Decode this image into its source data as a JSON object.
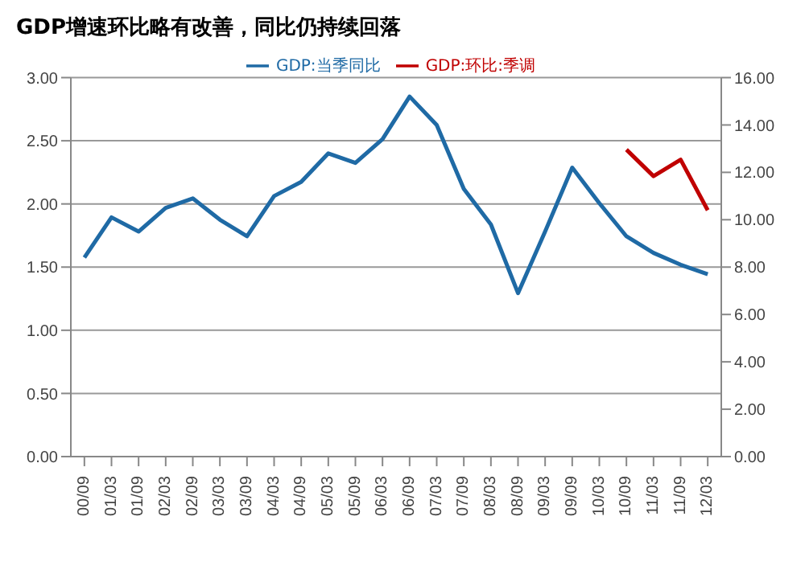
{
  "chart_data": {
    "type": "line",
    "title": "GDP增速环比略有改善，同比仍持续回落",
    "categories": [
      "00/09",
      "01/03",
      "01/09",
      "02/03",
      "02/09",
      "03/03",
      "03/09",
      "04/03",
      "04/09",
      "05/03",
      "05/09",
      "06/03",
      "06/09",
      "07/03",
      "07/09",
      "08/03",
      "08/09",
      "09/03",
      "09/09",
      "10/03",
      "10/09",
      "11/03",
      "11/09",
      "12/03"
    ],
    "series": [
      {
        "name": "GDP:环比:季调",
        "color": "#c00000",
        "values": [
          null,
          null,
          null,
          null,
          null,
          null,
          null,
          null,
          null,
          null,
          null,
          null,
          null,
          null,
          null,
          null,
          null,
          null,
          null,
          null,
          2.43,
          2.22,
          2.35,
          1.95
        ]
      },
      {
        "name": "GDP:当季同比",
        "color": "#1f6aa5",
        "axis": "y2",
        "values": [
          8.4,
          10.1,
          9.5,
          10.5,
          10.9,
          10.0,
          9.3,
          11.0,
          11.6,
          12.8,
          12.4,
          13.4,
          15.2,
          14.0,
          11.3,
          9.8,
          6.9,
          9.5,
          12.2,
          10.7,
          9.3,
          8.6,
          8.1,
          7.7
        ]
      }
    ],
    "ylim": [
      0,
      3
    ],
    "yticks": [
      {
        "value": 0,
        "label": "0.00"
      },
      {
        "value": 0.5,
        "label": "0.50"
      },
      {
        "value": 1,
        "label": "1.00"
      },
      {
        "value": 1.5,
        "label": "1.50"
      },
      {
        "value": 2,
        "label": "2.00"
      },
      {
        "value": 2.5,
        "label": "2.50"
      },
      {
        "value": 3,
        "label": "3.00"
      }
    ],
    "y2lim": [
      0,
      16
    ],
    "y2ticks": [
      {
        "value": 0,
        "label": "0.00"
      },
      {
        "value": 2,
        "label": "2.00"
      },
      {
        "value": 4,
        "label": "4.00"
      },
      {
        "value": 6,
        "label": "6.00"
      },
      {
        "value": 8,
        "label": "8.00"
      },
      {
        "value": 10,
        "label": "10.00"
      },
      {
        "value": 12,
        "label": "12.00"
      },
      {
        "value": 14,
        "label": "14.00"
      },
      {
        "value": 16,
        "label": "16.00"
      }
    ],
    "grid": "y",
    "legend": "top",
    "marker": "none",
    "line_style": "solid"
  }
}
